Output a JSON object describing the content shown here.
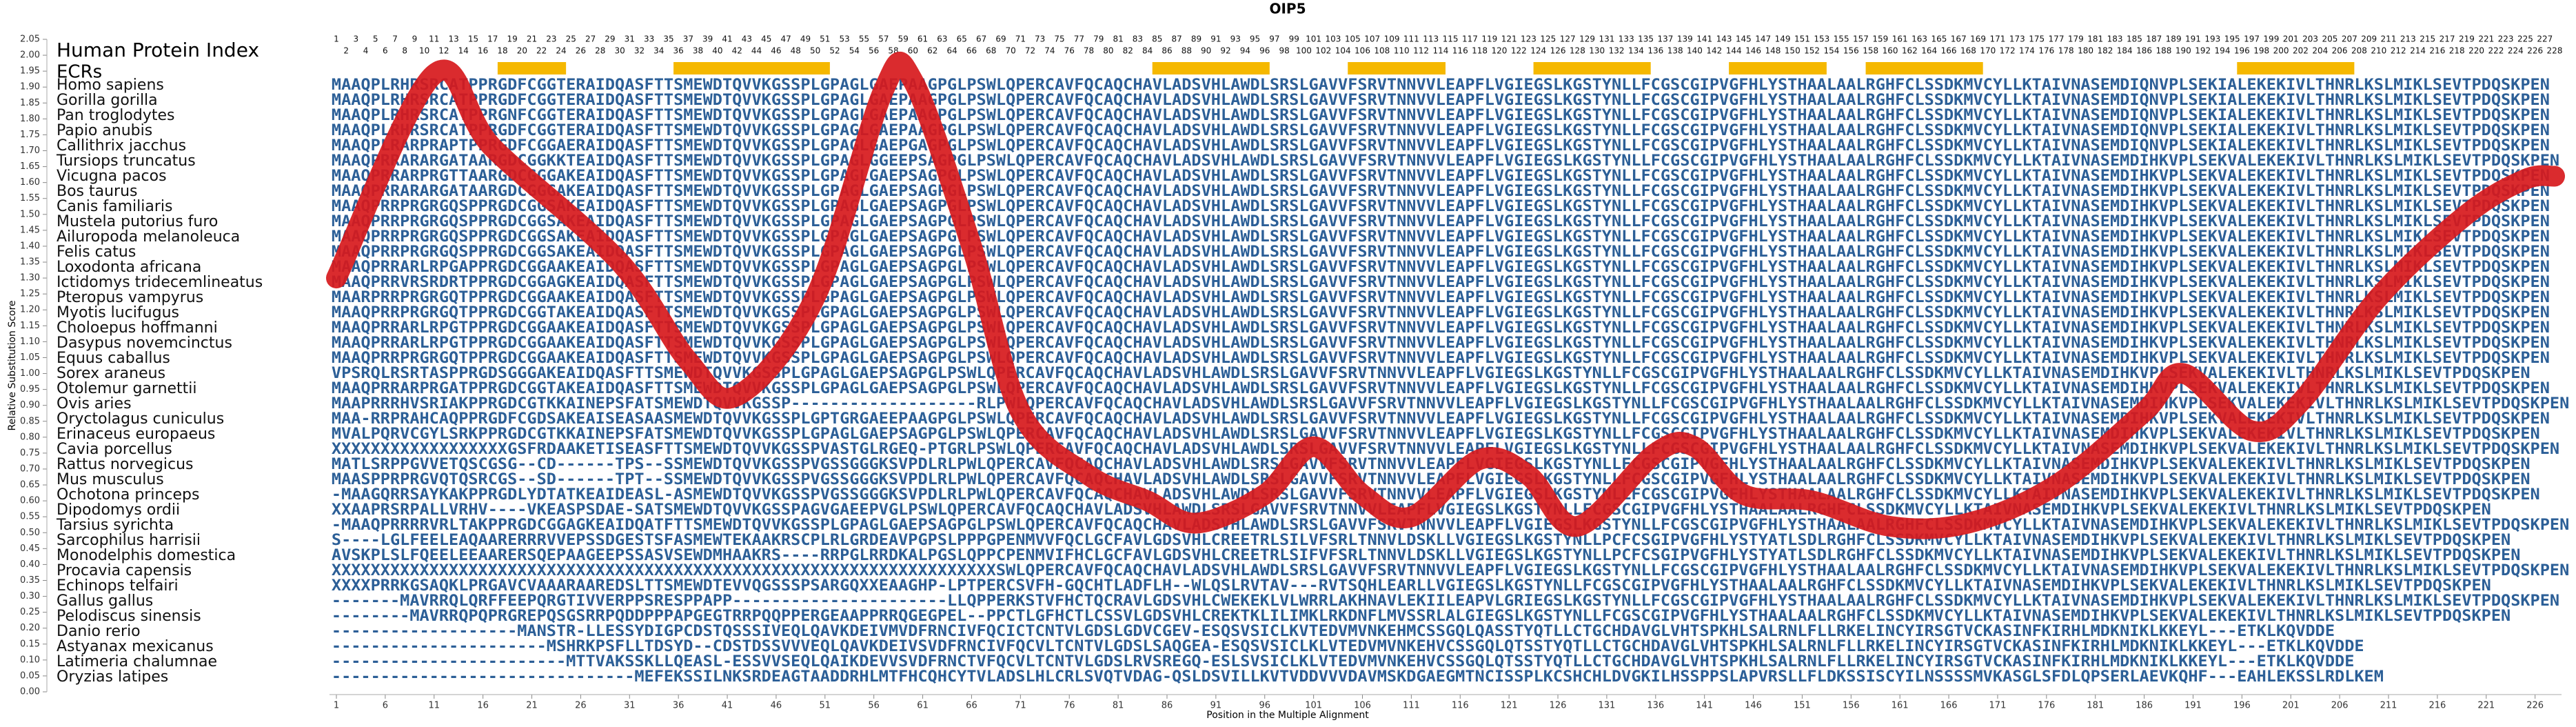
{
  "chart_data": {
    "type": "alignment",
    "title": "OIP5",
    "header_label": "Human Protein Index",
    "ecr_label": "ECRs",
    "xlabel": "Position in the Multiple Alignment",
    "ylabel": "Relative Substitution Score",
    "xlim": [
      1,
      228
    ],
    "ylim": [
      0,
      2.05
    ],
    "xticks": [
      1,
      6,
      11,
      16,
      21,
      26,
      31,
      36,
      41,
      46,
      51,
      56,
      61,
      66,
      71,
      76,
      81,
      86,
      91,
      96,
      101,
      106,
      111,
      116,
      121,
      126,
      131,
      136,
      141,
      146,
      151,
      156,
      161,
      166,
      171,
      176,
      181,
      186,
      191,
      196,
      201,
      206,
      211,
      216,
      221,
      226
    ],
    "yticks": [
      {
        "value": 0,
        "label": "0.00"
      },
      0.05,
      {
        "value": 0.1,
        "label": "0.10"
      },
      0.15,
      {
        "value": 0.2,
        "label": "0.20"
      },
      0.25,
      {
        "value": 0.3,
        "label": "0.30"
      },
      0.35,
      {
        "value": 0.4,
        "label": "0.40"
      },
      0.45,
      {
        "value": 0.5,
        "label": "0.50"
      },
      0.55,
      {
        "value": 0.6,
        "label": "0.60"
      },
      0.65,
      {
        "value": 0.7,
        "label": "0.70"
      },
      0.75,
      {
        "value": 0.8,
        "label": "0.80"
      },
      0.85,
      {
        "value": 0.9,
        "label": "0.90"
      },
      0.95,
      {
        "value": 1,
        "label": "1.00"
      },
      1.05,
      {
        "value": 1.1,
        "label": "1.10"
      },
      1.15,
      {
        "value": 1.2,
        "label": "1.20"
      },
      1.25,
      {
        "value": 1.3,
        "label": "1.30"
      },
      1.35,
      {
        "value": 1.4,
        "label": "1.40"
      },
      1.45,
      {
        "value": 1.5,
        "label": "1.50"
      },
      1.55,
      {
        "value": 1.6,
        "label": "1.60"
      },
      1.65,
      {
        "value": 1.7,
        "label": "1.70"
      },
      1.75,
      {
        "value": 1.8,
        "label": "1.80"
      },
      1.85,
      {
        "value": 1.9,
        "label": "1.90"
      },
      1.95,
      {
        "value": 2,
        "label": "2.00"
      },
      2.05
    ],
    "positions": [
      1,
      2,
      3,
      4,
      5,
      6,
      7,
      8,
      9,
      10,
      11,
      12,
      13,
      14,
      15,
      16,
      17,
      18,
      19,
      20,
      21,
      22,
      23,
      24,
      25,
      26,
      27,
      28,
      29,
      30,
      31,
      32,
      33,
      34,
      35,
      36,
      37,
      38,
      39,
      40,
      41,
      42,
      43,
      44,
      45,
      46,
      47,
      48,
      49,
      50,
      51,
      52,
      53,
      54,
      55,
      56,
      57,
      58,
      59,
      60,
      61,
      62,
      63,
      64,
      65,
      66,
      67,
      68,
      69,
      70,
      71,
      72,
      73,
      74,
      75,
      76,
      77,
      78,
      79,
      80,
      81,
      82,
      83,
      84,
      85,
      86,
      87,
      88,
      89,
      90,
      91,
      92,
      93,
      94,
      95,
      96,
      97,
      98,
      99,
      100,
      101,
      102,
      103,
      104,
      105,
      106,
      107,
      108,
      109,
      110,
      111,
      112,
      113,
      114,
      115,
      116,
      117,
      118,
      119,
      120,
      121,
      122,
      123,
      124,
      125,
      126,
      127,
      128,
      129,
      130,
      131,
      132,
      133,
      134,
      135,
      136,
      137,
      138,
      139,
      140,
      141,
      142,
      143,
      144,
      145,
      146,
      147,
      148,
      149,
      150,
      151,
      152,
      153,
      154,
      155,
      156,
      157,
      158,
      159,
      160,
      161,
      162,
      163,
      164,
      165,
      166,
      167,
      168,
      169,
      170,
      171,
      172,
      173,
      174,
      175,
      176,
      177,
      178,
      179,
      180,
      181,
      182,
      183,
      184,
      185,
      186,
      187,
      188,
      189,
      190,
      191,
      192,
      193,
      194,
      195,
      196,
      197,
      198,
      199,
      200,
      201,
      202,
      203,
      204,
      205,
      206,
      207,
      208,
      209,
      210,
      211,
      212,
      213,
      214,
      215,
      216,
      217,
      218,
      219,
      220,
      221,
      222,
      223,
      224,
      225,
      226,
      227,
      228
    ],
    "ecrs": [
      [
        18,
        24
      ],
      [
        36,
        51
      ],
      [
        85,
        96
      ],
      [
        105,
        114
      ],
      [
        124,
        135
      ],
      [
        144,
        153
      ],
      [
        158,
        169
      ],
      [
        196,
        207
      ]
    ],
    "ecr_color": "#f5b800",
    "curve": {
      "color": "#d7191c",
      "x": [
        1,
        11,
        17,
        30,
        37,
        42,
        50,
        57,
        60,
        66,
        71,
        78,
        84,
        89,
        96,
        101,
        106,
        111,
        118,
        123,
        128,
        136,
        140,
        145,
        152,
        160,
        168,
        177,
        186,
        190,
        197,
        202,
        210,
        219,
        225,
        228
      ],
      "values": [
        1.3,
        1.94,
        1.71,
        1.35,
        1.04,
        0.93,
        1.24,
        1.89,
        1.92,
        1.4,
        0.88,
        0.68,
        0.6,
        0.53,
        0.62,
        0.77,
        0.62,
        0.55,
        0.73,
        0.68,
        0.52,
        0.75,
        0.77,
        0.62,
        0.6,
        0.52,
        0.53,
        0.65,
        0.88,
        1.0,
        0.82,
        0.91,
        1.24,
        1.5,
        1.61,
        1.62
      ]
    },
    "species": [
      "Homo sapiens",
      "Gorilla gorilla",
      "Pan troglodytes",
      "Papio anubis",
      "Callithrix jacchus",
      "Tursiops truncatus",
      "Vicugna pacos",
      "Bos taurus",
      "Canis familiaris",
      "Mustela putorius furo",
      "Ailuropoda melanoleuca",
      "Felis catus",
      "Loxodonta africana",
      "Ictidomys tridecemlineatus",
      "Pteropus vampyrus",
      "Myotis lucifugus",
      "Choloepus hoffmanni",
      "Dasypus novemcinctus",
      "Equus caballus",
      "Sorex araneus",
      "Otolemur garnettii",
      "Ovis aries",
      "Oryctolagus cuniculus",
      "Erinaceus europaeus",
      "Cavia porcellus",
      "Rattus norvegicus",
      "Mus musculus",
      "Ochotona princeps",
      "Dipodomys ordii",
      "Tarsius syrichta",
      "Sarcophilus harrisii",
      "Monodelphis domestica",
      "Procavia capensis",
      "Echinops telfairi",
      "Gallus gallus",
      "Pelodiscus sinensis",
      "Danio rerio",
      "Astyanax mexicanus",
      "Latimeria chalumnae",
      "Oryzias latipes"
    ],
    "sequences": [
      "MAAQPLRHRSRCATPPRGDFCGGTERAIDQASFTTSMEWDTQVVKGSSPLGPAGLGAEPAAGPGLPSWLQPERCAVFQCAQCHAVLADSVHLAWDLSRSLGAVVFSRVTNNVVLEAPFLVGIEGSLKGSTYNLLFCGSCGIPVGFHLYSTHAALAALRGHFCLSSDKMVCYLLKTAIVNASEMDIQNVPLSEKIALEKEKIVLTHNRLKSLMIKLSEVTPDQSKPEN",
      "MAAQPLRHRSRCATPPRGDFCGGTERAIDQASFTTSMEWDTQVVKGSSPLGPAGLGAEPAAGPGLPSWLQPERCAVFQCAQCHAVLADSVHLAWDLSRSLGAVVFSRVTNNVVLEAPFLVGIEGSLKGSTYNLLFCGSCGIPVGFHLYSTHAALAALRGHFCLSSDKMVCYLLKTAIVNASEMDIQNVPLSEKIALEKEKIVLTHNRLKSLMIKLSEVTPDQSKPEN",
      "MAAQPLRHRSRCATPPRGNFCGGTERAIDQASFTTSMEWDTQVVKGSSPLGPAGLGAEPAAGPGLPSWLQPERCAVFQCAQCHAVLADSVHLAWDLSRSLGAVVFSRVTNNVVLEAPFLVGIEGSLKGSTYNLLFCGSCGIPVGFHLYSTHAALAALRGHFCLSSDKMVCYLLKTAIVNASEMDIQNVPLSEKIALEKEKIVLTHNRLKSLMIKLSEVTPDQSKPEN",
      "MAAQPLRHRSRCATPPRGDFCGGTERAIDQASFTTSMEWDTQVVKGSSPLGPAGLGAEPAAGPGLPSWLQPERCAVFQCAQCHAVLADSVHLAWDLSRSLGAVVFSRVTNNVVLEAPFLVGIEGSLKGSTYNLLFCGSCGIPVGFHLYSTHAALAALRGHFCLSSDKMVCYLLKTAIVNASEMDIQNVPLSEKIALEKEKIVLTHNRLKSLMIKLSEVTPDQSKPEN",
      "MAAQPLRARPRAPTPPRGDFCGGAERAIDQASFTTSMEWDTQVVKGSSPLGPAGLGAEPGAGPGLPSWLQPERCAVFQCAQCHAVLADSVHLAWDLSRSLGAVVFSRVTNNVVLEAPFLVGIEGSLKGSTYNLLFCGSCGIPVGFHLYSTHAALAALRGHFCLSSDKMVCYLLKTAIVNASEMDIQNVPLSEKIALEKEKIVLTHNRLKSLMIKLSEVTPDQSKPEN",
      "MAAQPRRARARGATAARGDCGGKKTEAIDQASFTTSMEWDTQVVKGSSPLGPAGLGGEEPSAGPGLPSWLQPERCAVFQCAQCHAVLADSVHLAWDLSRSLGAVVFSRVTNNVVLEAPFLVGIEGSLKGSTYNLLFCGSCGIPVGFHLYSTHAALAALRGHFCLSSDKMVCYLLKTAIVNASEMDIHKVPLSEKVALEKEKIVLTHNRLKSLMIKLSEVTPDQSKPEN",
      "MAAQPRRARPRGTTAARGDCGGGAKEAIDQASFTTSMEWDTQVVKGSSPLGPAGLGAEPSAGPGLPSWLQPERCAVFQCAQCHAVLADSVHLAWDLSRSLGAVVFSRVTNNVVLEAPFLVGIEGSLKGSTYNLLFCGSCGIPVGFHLYSTHAALAALRGHFCLSSDKMVCYLLKTAIVNASEMDIHKVPLSEKVALEKEKIVLTHNRLKSLMIKLSEVTPDQSKPEN",
      "MAAQPRRARARGATAARGDCGGGAKEAIDQASFTTSMEWDTQVVKGSSPLGPAGLGAEPSAGPGLPSWLQPERCAVFQCAQCHAVLADSVHLAWDLSRSLGAVVFSRVTNNVVLEAPFLVGIEGSLKGSTYNLLFCGSCGIPVGFHLYSTHAALAALRGHFCLSSDKMVCYLLKTAIVNASEMDIHKVPLSEKVALEKEKIVLTHNRLKSLMIKLSEVTPDQSKPEN",
      "MAAQPRRPRGRGQSPPRGDCGGSAKEAIDQASFTTSMEWDTQVVKGSSPLGPAGLGAEPSAGPGLPSWLQPERCAVFQCAQCHAVLADSVHLAWDLSRSLGAVVFSRVTNNVVLEAPFLVGIEGSLKGSTYNLLFCGSCGIPVGFHLYSTHAALAALRGHFCLSSDKMVCYLLKTAIVNASEMDIHKVPLSEKVALEKEKIVLTHNRLKSLMIKLSEVTPDQSKPEN",
      "MAAQPRRPRGRGQSPPRGDCGGSAKEAIDQASFTTSMEWDTQVVKGSSPLGPAGLGAEPSAGPGLPSWLQPERCAVFQCAQCHAVLADSVHLAWDLSRSLGAVVFSRVTNNVVLEAPFLVGIEGSLKGSTYNLLFCGSCGIPVGFHLYSTHAALAALRGHFCLSSDKMVCYLLKTAIVNASEMDIHKVPLSEKVALEKEKIVLTHNRLKSLMIKLSEVTPDQSKPEN",
      "MAAQPRRPRGRGQSPPRGDCGGSAKEAIDQASFTTSMEWDTQVVKGSSPLGPAGLGAEPSAGPGLPSWLQPERCAVFQCAQCHAVLADSVHLAWDLSRSLGAVVFSRVTNNVVLEAPFLVGIEGSLKGSTYNLLFCGSCGIPVGFHLYSTHAALAALRGHFCLSSDKMVCYLLKTAIVNASEMDIHKVPLSEKVALEKEKIVLTHNRLKSLMIKLSEVTPDQSKPEN",
      "MAAQPRRPRGRGQSPPRGDCGGSAKEAIDQASFTTSMEWDTQVVKGSSPLGPAGLGAEPSAGPGLPSWLQPERCAVFQCAQCHAVLADSVHLAWDLSRSLGAVVFSRVTNNVVLEAPFLVGIEGSLKGSTYNLLFCGSCGIPVGFHLYSTHAALAALRGHFCLSSDKMVCYLLKTAIVNASEMDIHKVPLSEKVALEKEKIVLTHNRLKSLMIKLSEVTPDQSKPEN",
      "MAAQPRRARLRPGAPPRGDCGGAAKEAIDQASFTTSMEWDTQVVKGSSPLGPAGLGAEPSAGPGLPSWLQPERCAVFQCAQCHAVLADSVHLAWDLSRSLGAVVFSRVTNNVVLEAPFLVGIEGSLKGSTYNLLFCGSCGIPVGFHLYSTHAALAALRGHFCLSSDKMVCYLLKTAIVNASEMDIHKVPLSEKVALEKEKIVLTHNRLKSLMIKLSEVTPDQSKPEN",
      "MAAQPRRVRSRDRTPPRGDCGGAGKEAIDQASFTTSMEWDTQVVKGSSPLGPAGLGAEPSAGPGLPSWLQPERCAVFQCAQCHAVLADSVHLAWDLSRSLGAVVFSRVTNNVVLEAPFLVGIEGSLKGSTYNLLFCGSCGIPVGFHLYSTHAALAALRGHFCLSSDKMVCYLLKTAIVNASEMDIHKVPLSEKVALEKEKIVLTHNRLKSLMIKLSEVTPDQSKPEN",
      "MAARPRRPRGRGQTPPRGDCGGAAKEAIDQASFTTSMEWDTQVVKGSSPLGPAGLGAEPSAGPGLPSWLQPERCAVFQCAQCHAVLADSVHLAWDLSRSLGAVVFSRVTNNVVLEAPFLVGIEGSLKGSTYNLLFCGSCGIPVGFHLYSTHAALAALRGHFCLSSDKMVCYLLKTAIVNASEMDIHKVPLSEKVALEKEKIVLTHNRLKSLMIKLSEVTPDQSKPEN",
      "MAAQPRRPRGRGQTPPRGDCGGTAKEAIDQASFTTSMEWDTQVVKGSSPLGPAGLGAEPSAGPGLPSWLQPERCAVFQCAQCHAVLADSVHLAWDLSRSLGAVVFSRVTNNVVLEAPFLVGIEGSLKGSTYNLLFCGSCGIPVGFHLYSTHAALAALRGHFCLSSDKMVCYLLKTAIVNASEMDIHKVPLSEKVALEKEKIVLTHNRLKSLMIKLSEVTPDQSKPEN",
      "MAAQPRRARLRPGTPPRGDCGGAAKEAIDQASFTTSMEWDTQVVKGSSPLGPAGLGAEPSAGPGLPSWLQPERCAVFQCAQCHAVLADSVHLAWDLSRSLGAVVFSRVTNNVVLEAPFLVGIEGSLKGSTYNLLFCGSCGIPVGFHLYSTHAALAALRGHFCLSSDKMVCYLLKTAIVNASEMDIHKVPLSEKVALEKEKIVLTHNRLKSLMIKLSEVTPDQSKPEN",
      "MAAQPRRARLRPGTPPRGDCGGAAKEAIDQASFTTSMEWDTQVVKGSSPLGPAGLGAEPSAGPGLPSWLQPERCAVFQCAQCHAVLADSVHLAWDLSRSLGAVVFSRVTNNVVLEAPFLVGIEGSLKGSTYNLLFCGSCGIPVGFHLYSTHAALAALRGHFCLSSDKMVCYLLKTAIVNASEMDIHKVPLSEKVALEKEKIVLTHNRLKSLMIKLSEVTPDQSKPEN",
      "MAAQPRRPRGRGQTPPRGDCGGAAKEAIDQASFTTSMEWDTQVVKGSSPLGPAGLGAEPSAGPGLPSWLQPERCAVFQCAQCHAVLADSVHLAWDLSRSLGAVVFSRVTNNVVLEAPFLVGIEGSLKGSTYNLLFCGSCGIPVGFHLYSTHAALAALRGHFCLSSDKMVCYLLKTAIVNASEMDIHKVPLSEKVALEKEKIVLTHNRLKSLMIKLSEVTPDQSKPEN",
      "VPSRQLRSRTASPPRGDSGGGAKEAIDQASFTTSMEWDTQVVKGSSPLGPAGLGAEPSAGPGLPSWLQPERCAVFQCAQCHAVLADSVHLAWDLSRSLGAVVFSRVTNNVVLEAPFLVGIEGSLKGSTYNLLFCGSCGIPVGFHLYSTHAALAALRGHFCLSSDKMVCYLLKTAIVNASEMDIHKVPLSEKVALEKEKIVLTHNRLKSLMIKLSEVTPDQSKPEN",
      "MAAQPRRARPRGATPPRGDCGGTAKEAIDQASFTTSMEWDTQVVKGSSPLGPAGLGAEPSAGPGLPSWLQPERCAVFQCAQCHAVLADSVHLAWDLSRSLGAVVFSRVTNNVVLEAPFLVGIEGSLKGSTYNLLFCGSCGIPVGFHLYSTHAALAALRGHFCLSSDKMVCYLLKTAIVNASEMDIHKVPLSEKVALEKEKIVLTHNRLKSLMIKLSEVTPDQSKPEN",
      "MAAPRRRHVSRIAKPPRGDCGTKKAINEPSFATSMEWDTQVVKGSSP-------------------RLPWLQPERCAVFQCAQCHAVLADSVHLAWDLSRSLGAVVFSRVTNNVVLEAPFLVGIEGSLKGSTYNLLFCGSCGIPVGFHLYSTHAALAALRGHFCLSSDKMVCYLLKTAIVNASEMDIHKVPLSEKVALEKEKIVLTHNRLKSLMIKLSEVTPDQSKPEN",
      "MAA-RRPRAHCAQPPRGDFCGDSAKEAISEASAASMEWDTQVVKGSSPLGPTGRGAEEPAAGPGLPSWLQPERCAVFQCAQCHAVLADSVHLAWDLSRSLGAVVFSRVTNNVVLEAPFLVGIEGSLKGSTYNLLFCGSCGIPVGFHLYSTHAALAALRGHFCLSSDKMVCYLLKTAIVNASEMDIHKVPLSEKVALEKEKIVLTHNRLKSLMIKLSEVTPDQSKPEN",
      "MVALPQRVCGYLSRKPPRGDCGTKKAINEPSFATSMEWDTQVVKGSSPLGPAGLGAEPSAGPGLPSWLQPERCAVFQCAQCHAVLADSVHLAWDLSRSLGAVVFSRVTNNVVLEAPFLVGIEGSLKGSTYNLLFCGSCGIPVGFHLYSTHAALAALRGHFCLSSDKMVCYLLKTAIVNASEMDIHKVPLSEKVALEKEKIVLTHNRLKSLMIKLSEVTPDQSKPEN",
      "XXXXXXXXXXXXXXXXXXGSFRDAAKETISEASFTTSMEWDTQVVKGSSPVASTGLRGEQ-PTGRLPSWLQPERCAVFQCAQCHAVLADSVHLAWDLSRSLGAVVFSRVTNNVVLEAPFLVGIEGSLKGSTYNLLFCGSCGIPVGFHLYSTHAALAALRGHFCLSSDKMVCYLLKTAIVNASEMDIHKVPLSEKVALEKEKIVLTHNRLKSLMIKLSEVTPDQSKPEN",
      "MATLSRPPGVVETQSCGSG--CD------TPS--SSMEWDTQVVKGSSPVGSSGGGKSVPDLRLPWLQPERCAVFQCAQCHAVLADSVHLAWDLSRSLGAVVFSRVTNNVVLEAPFLVGIEGSLKGSTYNLLFCGSCGIPVGFHLYSTHAALAALRGHFCLSSDKMVCYLLKTAIVNASEMDIHKVPLSEKVALEKEKIVLTHNRLKSLMIKLSEVTPDQSKPEN",
      "MAASPPRPRGVQTQSRCGS--SD------TPT--SSMEWDTQVVKGSSPVGSSGGGKSVPDLRLPWLQPERCAVFQCAQCHAVLADSVHLAWDLSRSLGAVVFSRVTNNVVLEAPFLVGIEGSLKGSTYNLLFCGSCGIPVGFHLYSTHAALAALRGHFCLSSDKMVCYLLKTAIVNASEMDIHKVPLSEKVALEKEKIVLTHNRLKSLMIKLSEVTPDQSKPEN",
      "-MAAGQRRSAYKAKPPRGDLYDTATKEAIDEASL-ASMEWDTQVVKGSSPVGSSGGGKSVPDLRLPWLQPERCAVFQCAQCHAVLADSVHLAWDLSRSLGAVVFSRVTNNVVLEAPFLVGIEGSLKGSTYNLLFCGSCGIPVGFHLYSTHAALAALRGHFCLSSDKMVCYLLKTAIVNASEMDIHKVPLSEKVALEKEKIVLTHNRLKSLMIKLSEVTPDQSKPEN",
      "XXAAPRSRPALLVRHV----VKEASPSDAE-SATSMEWDTQVVKGSSPAGVGAEEPVGLPSWLQPERCAVFQCAQCHAVLADSVHLAWDLSRSLGAVVFSRVTNNVVLEAPFLVGIEGSLKGSTYNLLFCGSCGIPVGFHLYSTHAALAALRGHFCLSSDKMVCYLLKTAIVNASEMDIHKVPLSEKVALEKEKIVLTHNRLKSLMIKLSEVTPDQSKPEN",
      "-MAAQPRRRRVRLTAKPPRGDCGGAGKEAIDQATFTTSMEWDTQVVKGSSPLGPAGLGAEPSAGPGLPSWLQPERCAVFQCAQCHAVLADSVHLAWDLSRSLGAVVFSRVTNNVVLEAPFLVGIEGSLKGSTYNLLFCGSCGIPVGFHLYSTHAALAALRGHFCLSSDKMVCYLLKTAIVNASEMDIHKVPLSEKVALEKEKIVLTHNRLKSLMIKLSEVTPDQSKPEN",
      "S----LGLFEELEAQAARERRRVVEPSSDGESTSFASMEWTEKAAKRSCPLRLGRDEAVPGPSLPPPGPENMVVFQCLGCFAVLGDSVHLCREETRLSILVFSRLTNNVLDSKLLVGIEGSLKGSTYNLLPCFCSGIPVGFHLYSTYATLSDLRGHFCLSSDKMVCYLLKTAIVNASEMDIHKVPLSEKVALEKEKIVLTHNRLKSLMIKLSEVTPDQSKPEN",
      "AVSKPLSLFQEELEEAARERSQEPAAGEEPSSASVSEWDMHAAKRS----RRPGLRRDKALPGSLQPPCPENMVIFHCLGCFAVLGDSVHLCREETRLSIFVFSRLTNNVLDSKLLVGIEGSLKGSTYNLLPCFCSGIPVGFHLYSTYATLSDLRGHFCLSSDKMVCYLLKTAIVNASEMDIHKVPLSEKVALEKEKIVLTHNRLKSLMIKLSEVTPDQSKPEN",
      "XXXXXXXXXXXXXXXXXXXXXXXXXXXXXXXXXXXXXXXXXXXXXXXXXXXXXXXXXXXXXXXXXXXXSWLQPERCAVFQCAQCHAVLADSVHLAWDLSRSLGAVVFSRVTNNVVLEAPFLVGIEGSLKGSTYNLLFCGSCGIPVGFHLYSTHAALAALRGHFCLSSDKMVCYLLKTAIVNASEMDIHKVPLSEKVALEKEKIVLTHNRLKSLMIKLSEVTPDQSKPEN",
      "XXXXPRRKGSAQKLPRGAVCVAAARAAREDSLTTSMEWDTEVVQGSSSPSARGQXXEAAGHP-LPTPERCSVFH-GQCHTLADFLH--WLQSLRVTAV---RVTSQHLEARLLVGIEGSLKGSTYNLLFCGSCGIPVGFHLYSTHAALAALRGHFCLSSDKMVCYLLKTAIVNASEMDIHKVPLSEKVALEKEKIVLTHNRLKSLMIKLSEVTPDQSKPEN",
      "-------MAVRRQLQRFFEEPQRGTIVVERPPSRESPPAPP----------------------LLQPPERKSTVFHCTQCRAVLGDSVHLCWEKEKLVLWRRLAKHNAVLEKIILEAPVLGRIEGSLKGSTYNLLFCGSCGIPVGFHLYSTHAALAALRGHFCLSSDKMVCYLLKTAIVNASEMDIHKVPLSEKVALEKEKIVLTHNRLKSLMIKLSEVTPDQSKPEN",
      "--------MAVRRQPQPRGREPQSGSRRPQDDPPPAPGEGTRRPQQPPERGEAAPPRRQGEGPEL--PPCTLGFHCTLCSSVLGDSVHLCREKTKLILIMKLRKDNFLMVSSRLALGIEGSLKGSTYNLLFCGSCGIPVGFHLYSTHAALAALRGHFCLSSDKMVCYLLKTAIVNASEMDIHKVPLSEKVALEKEKIVLTHNRLKSLMIKLSEVTPDQSKPEN",
      "-------------------MANSTR-LLESSYDIGPCDSTQSSSIVEQLQAVKDEIVMVDFRNCIVFQCICTCNTVLGDSLGDVCGEV-ESQSVSICLKVTEDVMVNKEHMCSSGQLQASSTYQTLLCTGCHDAVGLVHTSPKHLSALRNLFLLRKELINCYIRSGTVCKASINFKIRHLMDKNIKLKKEYL---ETKLKQVDDE",
      "----------------------MSHRKPSFLLTDSYD--CDSTDSSVVVEQLQAVKDEIVSVDFRNCIVFQCVLTCNTVLGDSLSAQGEA-ESQSVSICLKLVTEDVMVNKEHVCSSGQLQTSSTYQTLLCTGCHDAVGLVHTSPKHLSALRNLFLLRKELINCYIRSGTVCKASINFKIRHLMDKNIKLKKEYL---ETKLKQVDDE",
      "------------------------MTTVAKSSKLLQEASL-ESSVVSEQLQAIKDEVVSVDFRNCTVFQCVLTCNTVLGDSLRVSREGQ-ESLSVSICLKLVTEDVMVNKEHVCSSGQLQTSSTYQTLLCTGCHDAVGLVHTSPKHLSALRNLFLLRKELINCYIRSGTVCKASINFKIRHLMDKNIKLKKEYL---ETKLKQVDDE",
      "-------------------------------MEFEKSSILNKSRDEAGTAADDRHLMTFHCQHCYTVLADSLHLCRLSVQTVDAG-QSLDSVILLKVTVDDVVVDAVMSKDGAEGMTNCISSPLKCSHCHLDVGKILHSSPPSLAPVRSLLFLDKSSISCYILNSSSSMVKASGLSFDLQPSERLAEVKQHF---EAHLEKSSLRDLKEM"
    ],
    "sequence_color": "#2c5f97"
  }
}
